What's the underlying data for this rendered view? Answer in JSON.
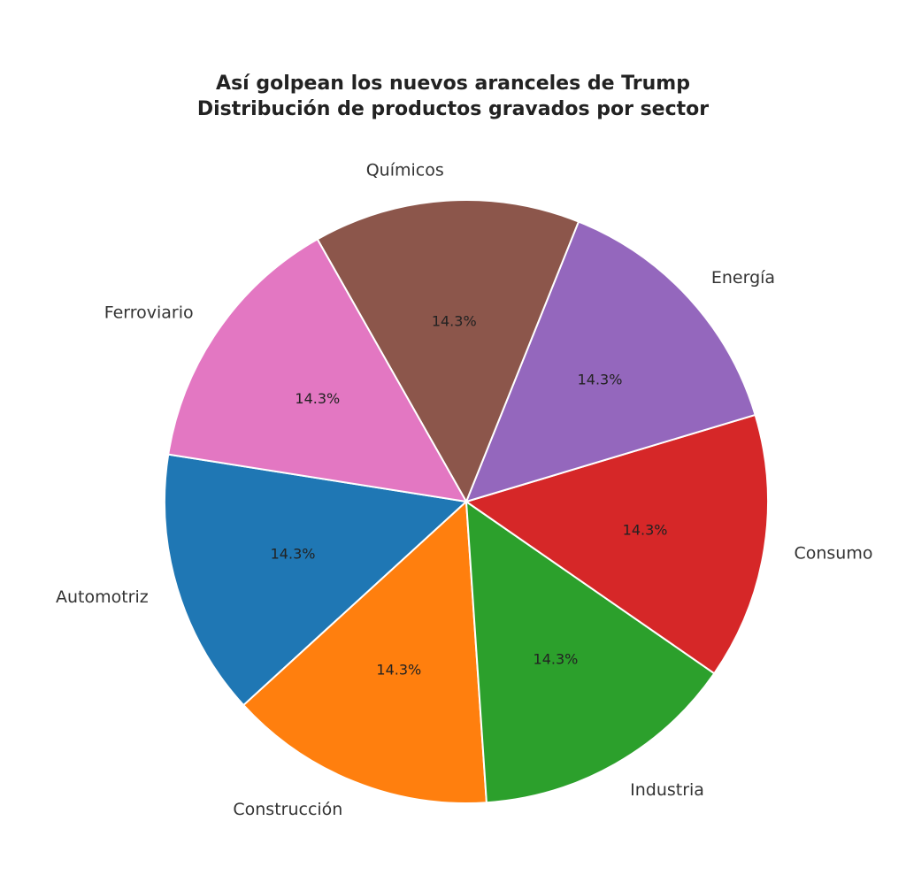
{
  "chart_data": {
    "type": "pie",
    "title": "Así golpean los nuevos aranceles de Trump",
    "subtitle": "Distribución de productos gravados por sector",
    "start_angle_deg": 171,
    "direction": "counterclockwise",
    "slices": [
      {
        "label": "Automotriz",
        "value": 14.3,
        "display": "14.3%",
        "color": "#1f77b4"
      },
      {
        "label": "Construcción",
        "value": 14.3,
        "display": "14.3%",
        "color": "#ff7f0e"
      },
      {
        "label": "Industria",
        "value": 14.3,
        "display": "14.3%",
        "color": "#2ca02c"
      },
      {
        "label": "Consumo",
        "value": 14.3,
        "display": "14.3%",
        "color": "#d62728"
      },
      {
        "label": "Energía",
        "value": 14.3,
        "display": "14.3%",
        "color": "#9467bd"
      },
      {
        "label": "Químicos",
        "value": 14.3,
        "display": "14.3%",
        "color": "#8c564b"
      },
      {
        "label": "Ferroviario",
        "value": 14.3,
        "display": "14.3%",
        "color": "#e377c2"
      }
    ]
  }
}
